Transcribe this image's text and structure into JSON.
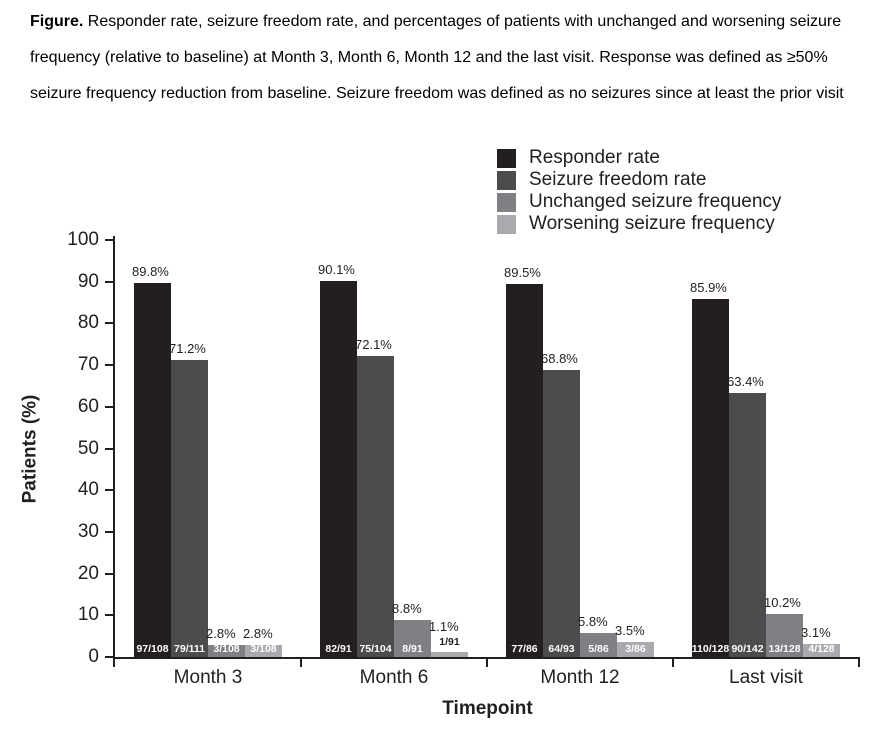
{
  "caption": {
    "label": "Figure.",
    "text": " Responder rate, seizure freedom rate, and percentages of patients with unchanged and worsening seizure frequency (relative to baseline) at Month 3, Month 6, Month 12 and the last visit. Response was defined as ≥50% seizure frequency reduction from baseline. Seizure freedom was defined as no seizures since at least the prior visit"
  },
  "colors": {
    "axis": "#231f20",
    "bar_value_text": "#231f20",
    "fraction_inside_text": "#ffffff",
    "fraction_outside_text": "#231f20"
  },
  "chart_data": {
    "type": "bar",
    "title": "",
    "xlabel": "Timepoint",
    "ylabel": "Patients (%)",
    "ylim": [
      0,
      100
    ],
    "ytick_step": 10,
    "grid": false,
    "legend_position": "top-right",
    "categories": [
      "Month 3",
      "Month 6",
      "Month 12",
      "Last visit"
    ],
    "series": [
      {
        "name": "Responder rate",
        "color": "#231f20",
        "values": [
          89.8,
          90.1,
          89.5,
          85.9
        ],
        "value_labels": [
          "89.8%",
          "90.1%",
          "89.5%",
          "85.9%"
        ],
        "fractions": [
          "97/108",
          "82/91",
          "77/86",
          "110/128"
        ]
      },
      {
        "name": "Seizure freedom rate",
        "color": "#4c4c4e",
        "values": [
          71.2,
          72.1,
          68.8,
          63.4
        ],
        "value_labels": [
          "71.2%",
          "72.1%",
          "68.8%",
          "63.4%"
        ],
        "fractions": [
          "79/111",
          "75/104",
          "64/93",
          "90/142"
        ]
      },
      {
        "name": "Unchanged seizure frequency",
        "color": "#7e8083",
        "values": [
          2.8,
          8.8,
          5.8,
          10.2
        ],
        "value_labels": [
          "2.8%",
          "8.8%",
          "5.8%",
          "10.2%"
        ],
        "fractions": [
          "3/108",
          "8/91",
          "5/86",
          "13/128"
        ]
      },
      {
        "name": "Worsening seizure frequency",
        "color": "#a8aaad",
        "values": [
          2.8,
          1.1,
          3.5,
          3.1
        ],
        "value_labels": [
          "2.8%",
          "1.1%",
          "3.5%",
          "3.1%"
        ],
        "fractions": [
          "3/108",
          "1/91",
          "3/86",
          "4/128"
        ]
      }
    ]
  }
}
